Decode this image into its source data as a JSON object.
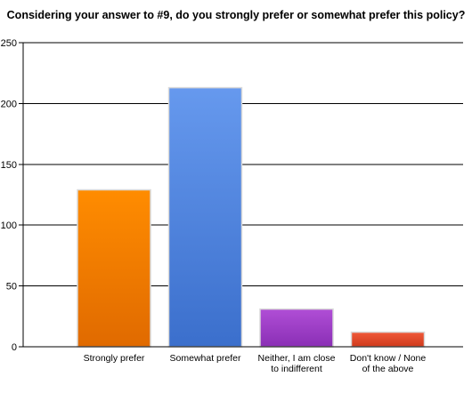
{
  "colors": {
    "background": "#ffffff",
    "gridline": "#000000",
    "axis": "#000000"
  },
  "chart_data": {
    "type": "bar",
    "title": "Considering your answer to #9, do you strongly prefer or somewhat prefer this policy?",
    "xlabel": "",
    "ylabel": "",
    "ylim": [
      0,
      250
    ],
    "yticks": [
      0,
      50,
      100,
      150,
      200,
      250
    ],
    "grid": true,
    "legend": "none",
    "categories": [
      [
        "Strongly prefer"
      ],
      [
        "Somewhat prefer"
      ],
      [
        "Neither, I am close",
        "to indifferent"
      ],
      [
        "Don't know / None",
        "of the above"
      ]
    ],
    "values": [
      129,
      213,
      31,
      12
    ],
    "bar_colors": [
      {
        "top": "#ff8c00",
        "bottom": "#e06a00"
      },
      {
        "top": "#6699ee",
        "bottom": "#3b6fcc"
      },
      {
        "top": "#b04ed6",
        "bottom": "#8a2fb5"
      },
      {
        "top": "#f05a3a",
        "bottom": "#cf3a1c"
      }
    ]
  }
}
